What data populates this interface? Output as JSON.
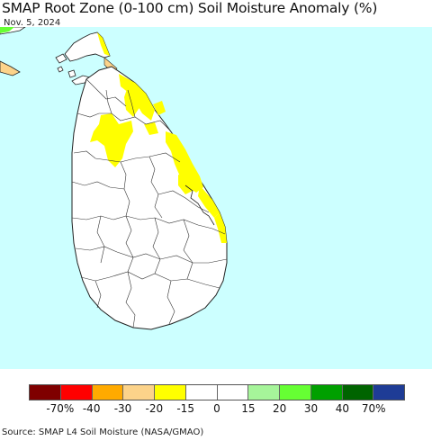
{
  "title": "SMAP Root Zone (0-100 cm) Soil Moisture Anomaly (%)",
  "date": "Nov. 5, 2024",
  "source": "Source: SMAP L4 Soil Moisture (NASA/GMAO)",
  "colors": {
    "ocean": "#ccffff",
    "land": "#ffffff",
    "boundary": "#222222",
    "anomaly_dry_20": "#ffff00",
    "anomaly_dry_30": "#fcd38a",
    "anomaly_wet_30": "#66ff33"
  },
  "legend": {
    "colors": [
      "#7f0000",
      "#ff0000",
      "#ffaa00",
      "#fcd38a",
      "#ffff00",
      "#ffffff",
      "#ffffff",
      "#a6f59a",
      "#66ff33",
      "#00a000",
      "#006400",
      "#1e3c96"
    ],
    "labels": [
      "-70%",
      "-40",
      "-30",
      "-20",
      "-15",
      "0",
      "15",
      "20",
      "30",
      "40",
      "70%"
    ]
  }
}
